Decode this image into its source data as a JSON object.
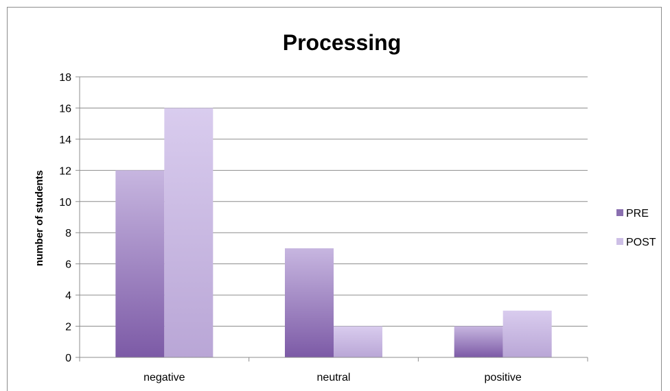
{
  "chart_data": {
    "type": "bar",
    "title": "Processing",
    "xlabel": "",
    "ylabel": "number of students",
    "categories": [
      "negative",
      "neutral",
      "positive"
    ],
    "series": [
      {
        "name": "PRE",
        "values": [
          12,
          7,
          2
        ],
        "color": "#8a6fb0"
      },
      {
        "name": "POST",
        "values": [
          16,
          2,
          3
        ],
        "color": "#cdbfe6"
      }
    ],
    "ylim": [
      0,
      18
    ],
    "yticks": [
      0,
      2,
      4,
      6,
      8,
      10,
      12,
      14,
      16,
      18
    ],
    "grid": true,
    "legend_position": "right"
  }
}
